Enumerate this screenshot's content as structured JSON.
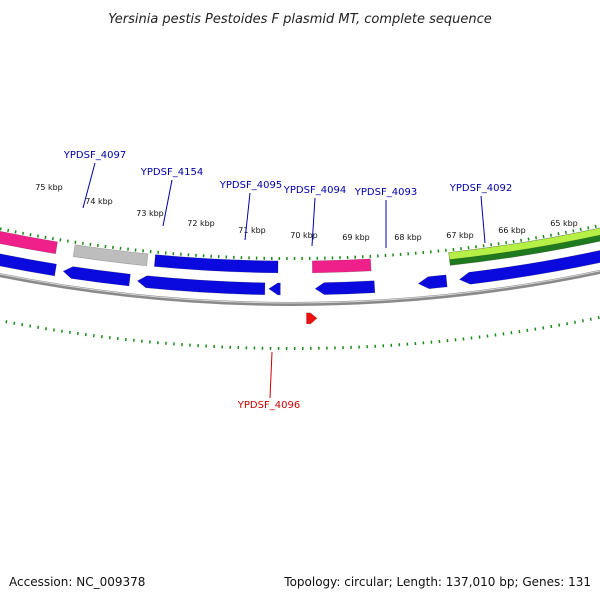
{
  "title": "Yersinia pestis Pestoides F plasmid MT, complete sequence",
  "footer": {
    "accession": "Accession: NC_009378",
    "summary": "Topology: circular; Length: 137,010 bp; Genes: 131"
  },
  "colors": {
    "backbone": "#8a8a8a",
    "tick": "#1a8a1a",
    "blue_gene": "#0a0adf",
    "pink_gene": "#f0208a",
    "gray_gene": "#bdbdbd",
    "red_gene": "#ee1010",
    "green_dark": "#1f7a1f",
    "green_light": "#b6f046",
    "label_blue": "#0000aa",
    "label_red": "#cc0000"
  },
  "kbp_labels": [
    "75 kbp",
    "74 kbp",
    "73 kbp",
    "72 kbp",
    "71 kbp",
    "70 kbp",
    "69 kbp",
    "68 kbp",
    "67 kbp",
    "66 kbp",
    "65 kbp"
  ],
  "gene_labels": [
    {
      "id": "YPDSF_4097",
      "color": "blue"
    },
    {
      "id": "YPDSF_4154",
      "color": "blue"
    },
    {
      "id": "YPDSF_4095",
      "color": "blue"
    },
    {
      "id": "YPDSF_4094",
      "color": "blue"
    },
    {
      "id": "YPDSF_4093",
      "color": "blue"
    },
    {
      "id": "YPDSF_4092",
      "color": "blue"
    },
    {
      "id": "YPDSF_4096",
      "color": "red"
    }
  ]
}
